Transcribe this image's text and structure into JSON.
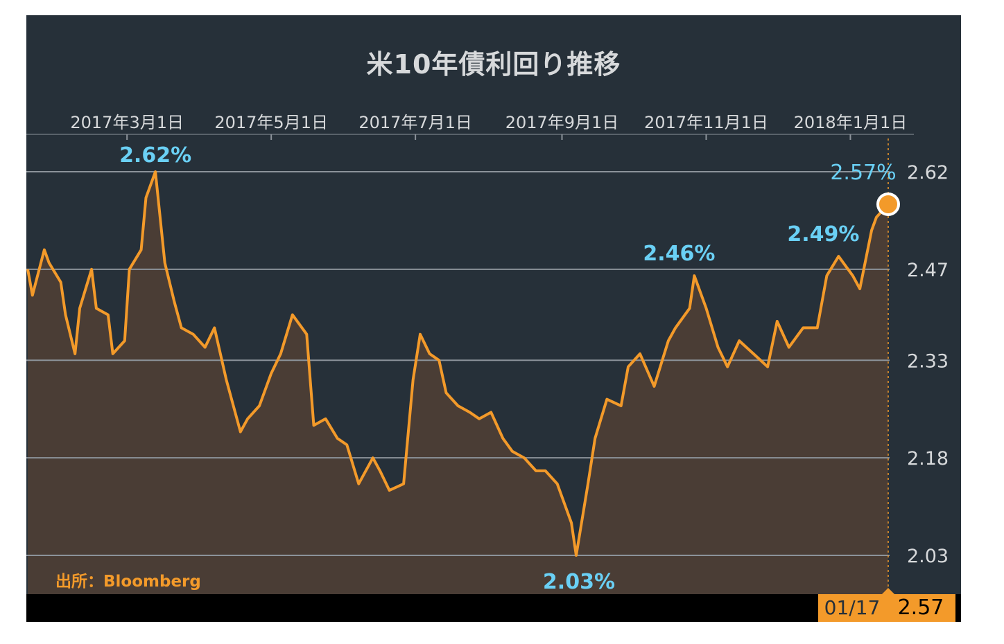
{
  "title": "米10年債利回り推移",
  "source": "出所：Bloomberg",
  "colors": {
    "background": "#263039",
    "line": "#f39a2a",
    "area": "#4a3d35",
    "annotation": "#6ad0f5",
    "grid": "#8c939a",
    "axis_text": "#d7d9db"
  },
  "current": {
    "date": "01/17",
    "value": "2.57"
  },
  "chart_data": {
    "type": "area",
    "title": "米10年債利回り推移",
    "xlabel": "",
    "ylabel": "",
    "x_range": [
      "2017-01-18",
      "2018-01-17"
    ],
    "x_ticks": [
      {
        "date": "2017-03-01",
        "label": "2017年3月1日"
      },
      {
        "date": "2017-05-01",
        "label": "2017年5月1日"
      },
      {
        "date": "2017-07-01",
        "label": "2017年7月1日"
      },
      {
        "date": "2017-09-01",
        "label": "2017年9月1日"
      },
      {
        "date": "2017-11-01",
        "label": "2017年11月1日"
      },
      {
        "date": "2018-01-01",
        "label": "2018年1月1日"
      }
    ],
    "ylim": [
      2.03,
      2.62
    ],
    "y_ticks": [
      "2.03",
      "2.18",
      "2.33",
      "2.47",
      "2.62"
    ],
    "y_axis_side": "right",
    "grid": true,
    "series": [
      {
        "x": [
          "2017-01-18",
          "2017-01-20",
          "2017-01-25",
          "2017-01-27",
          "2017-02-01",
          "2017-02-03",
          "2017-02-07",
          "2017-02-09",
          "2017-02-14",
          "2017-02-16",
          "2017-02-21",
          "2017-02-23",
          "2017-02-28",
          "2017-03-02",
          "2017-03-07",
          "2017-03-09",
          "2017-03-13",
          "2017-03-15",
          "2017-03-17",
          "2017-03-21",
          "2017-03-24",
          "2017-03-29",
          "2017-04-03",
          "2017-04-07",
          "2017-04-12",
          "2017-04-18",
          "2017-04-21",
          "2017-04-26",
          "2017-05-01",
          "2017-05-05",
          "2017-05-10",
          "2017-05-16",
          "2017-05-19",
          "2017-05-24",
          "2017-05-29",
          "2017-06-02",
          "2017-06-07",
          "2017-06-13",
          "2017-06-16",
          "2017-06-20",
          "2017-06-26",
          "2017-06-30",
          "2017-07-03",
          "2017-07-07",
          "2017-07-11",
          "2017-07-14",
          "2017-07-19",
          "2017-07-24",
          "2017-07-28",
          "2017-08-02",
          "2017-08-07",
          "2017-08-11",
          "2017-08-16",
          "2017-08-21",
          "2017-08-25",
          "2017-08-30",
          "2017-09-01",
          "2017-09-05",
          "2017-09-07",
          "2017-09-12",
          "2017-09-15",
          "2017-09-20",
          "2017-09-26",
          "2017-09-29",
          "2017-10-04",
          "2017-10-10",
          "2017-10-16",
          "2017-10-19",
          "2017-10-25",
          "2017-10-27",
          "2017-11-01",
          "2017-11-06",
          "2017-11-10",
          "2017-11-15",
          "2017-11-21",
          "2017-11-27",
          "2017-12-01",
          "2017-12-06",
          "2017-12-12",
          "2017-12-18",
          "2017-12-22",
          "2017-12-27",
          "2018-01-02",
          "2018-01-05",
          "2018-01-10",
          "2018-01-12",
          "2018-01-17"
        ],
        "values": [
          2.47,
          2.43,
          2.5,
          2.48,
          2.45,
          2.4,
          2.34,
          2.41,
          2.47,
          2.41,
          2.4,
          2.34,
          2.36,
          2.47,
          2.5,
          2.58,
          2.62,
          2.55,
          2.48,
          2.42,
          2.38,
          2.37,
          2.35,
          2.38,
          2.3,
          2.22,
          2.24,
          2.26,
          2.31,
          2.34,
          2.4,
          2.37,
          2.23,
          2.24,
          2.21,
          2.2,
          2.14,
          2.18,
          2.16,
          2.13,
          2.14,
          2.3,
          2.37,
          2.34,
          2.33,
          2.28,
          2.26,
          2.25,
          2.24,
          2.25,
          2.21,
          2.19,
          2.18,
          2.16,
          2.16,
          2.14,
          2.12,
          2.08,
          2.03,
          2.14,
          2.21,
          2.27,
          2.26,
          2.32,
          2.34,
          2.29,
          2.36,
          2.38,
          2.41,
          2.46,
          2.41,
          2.35,
          2.32,
          2.36,
          2.34,
          2.32,
          2.39,
          2.35,
          2.38,
          2.38,
          2.46,
          2.49,
          2.46,
          2.44,
          2.53,
          2.55,
          2.57
        ]
      }
    ],
    "annotations": [
      {
        "label": "2.62%",
        "date": "2017-03-13",
        "value": 2.62
      },
      {
        "label": "2.03%",
        "date": "2017-09-07",
        "value": 2.03
      },
      {
        "label": "2.46%",
        "date": "2017-10-27",
        "value": 2.46
      },
      {
        "label": "2.49%",
        "date": "2017-12-27",
        "value": 2.49
      },
      {
        "label": "2.57%",
        "date": "2018-01-17",
        "value": 2.57
      }
    ],
    "current_marker": {
      "date": "2018-01-17",
      "value": 2.57
    }
  }
}
